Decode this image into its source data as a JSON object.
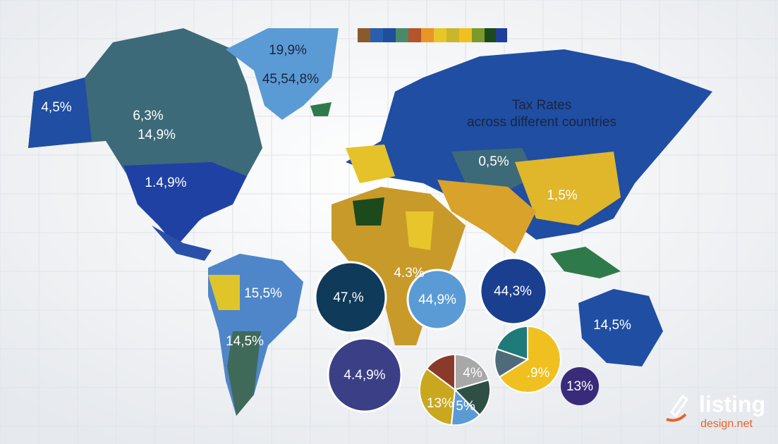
{
  "title": {
    "line1": "Tax Rates",
    "line2": "across different countries"
  },
  "map_labels": [
    "19,9%",
    "45,54,8%",
    "4,5%",
    "6,3%",
    "14,9%",
    "1.4,9%",
    "0,5%",
    "1,5%",
    "15,5%",
    "14,5%",
    "4.3%",
    "14,5%"
  ],
  "bubbles": [
    "47,%",
    "44,9%",
    "44,3%",
    "4.4,9%",
    "13%"
  ],
  "pie_labels": [
    "4%",
    "13%",
    "5%",
    ".9%"
  ],
  "brand": {
    "name": "listing",
    "domain": "design.net"
  }
}
